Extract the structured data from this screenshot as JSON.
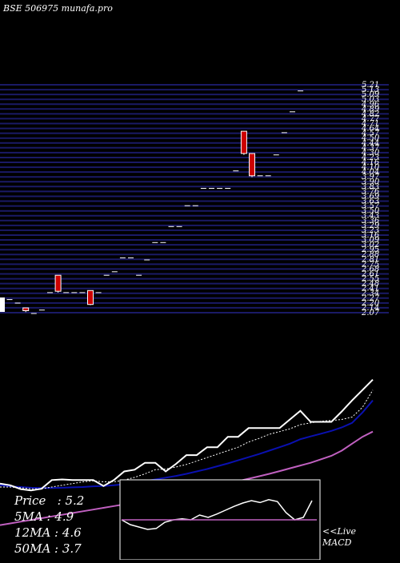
{
  "watermark": "BSE 506975 munafa.pro",
  "legend": {
    "price": "Price   : 5.2",
    "ma5": "5MA : 4.9",
    "ma12": "12MA : 4.6",
    "ma50": "50MA : 3.7"
  },
  "live_label": "<<Live",
  "macd_label": "MACD",
  "colors": {
    "background": "#000000",
    "grid": "#1a1a66",
    "candle": "#cc0000",
    "price_line": "#ffffff",
    "ma5": "#ffffff",
    "ma12": "#0a10b0",
    "ma50": "#c060c0",
    "macd_signal": "#c060c0"
  },
  "chart_data": [
    {
      "type": "candlestick",
      "title": "",
      "y_axis_side": "right",
      "ylim": [
        2.0,
        5.3
      ],
      "y_tick_labels": [
        "5.21",
        "5.13",
        "5.09",
        "5.03",
        "4.96",
        "4.89",
        "4.82",
        "4.77",
        "4.71",
        "4.64",
        "4.57",
        "4.50",
        "4.44",
        "4.37",
        "4.30",
        "4.23",
        "4.16",
        "4.10",
        "4.04",
        "3.97",
        "3.90",
        "3.83",
        "3.76",
        "3.69",
        "3.63",
        "3.57",
        "3.50",
        "3.43",
        "3.36",
        "3.29",
        "3.23",
        "3.16",
        "3.09",
        "3.02",
        "2.95",
        "2.88",
        "2.81",
        "2.75",
        "2.68",
        "2.61",
        "2.55",
        "2.48",
        "2.41",
        "2.34",
        "2.27",
        "2.20",
        "2.14",
        "2.07"
      ],
      "candles": [
        {
          "o": 2.2,
          "h": 2.2,
          "l": 2.2,
          "c": 2.2
        },
        {
          "o": 2.15,
          "h": 2.15,
          "l": 2.15,
          "c": 2.15
        },
        {
          "o": 2.08,
          "h": 2.08,
          "l": 2.02,
          "c": 2.04
        },
        {
          "o": 2.0,
          "h": 2.0,
          "l": 2.0,
          "c": 2.0
        },
        {
          "o": 2.05,
          "h": 2.05,
          "l": 2.05,
          "c": 2.05
        },
        {
          "o": 2.3,
          "h": 2.3,
          "l": 2.3,
          "c": 2.3
        },
        {
          "o": 2.55,
          "h": 2.55,
          "l": 2.3,
          "c": 2.32
        },
        {
          "o": 2.3,
          "h": 2.3,
          "l": 2.3,
          "c": 2.3
        },
        {
          "o": 2.3,
          "h": 2.3,
          "l": 2.3,
          "c": 2.3
        },
        {
          "o": 2.3,
          "h": 2.3,
          "l": 2.3,
          "c": 2.3
        },
        {
          "o": 2.33,
          "h": 2.33,
          "l": 2.12,
          "c": 2.13
        },
        {
          "o": 2.3,
          "h": 2.3,
          "l": 2.3,
          "c": 2.3
        },
        {
          "o": 2.55,
          "h": 2.55,
          "l": 2.55,
          "c": 2.55
        },
        {
          "o": 2.58,
          "h": 2.6,
          "l": 2.58,
          "c": 2.6
        },
        {
          "o": 2.8,
          "h": 2.8,
          "l": 2.8,
          "c": 2.8
        },
        {
          "o": 2.8,
          "h": 2.8,
          "l": 2.8,
          "c": 2.8
        },
        {
          "o": 2.55,
          "h": 2.55,
          "l": 2.55,
          "c": 2.55
        },
        {
          "o": 2.77,
          "h": 2.77,
          "l": 2.77,
          "c": 2.77
        },
        {
          "o": 3.02,
          "h": 3.02,
          "l": 3.02,
          "c": 3.02
        },
        {
          "o": 3.02,
          "h": 3.02,
          "l": 3.02,
          "c": 3.02
        },
        {
          "o": 3.25,
          "h": 3.25,
          "l": 3.25,
          "c": 3.25
        },
        {
          "o": 3.25,
          "h": 3.25,
          "l": 3.25,
          "c": 3.25
        },
        {
          "o": 3.55,
          "h": 3.55,
          "l": 3.55,
          "c": 3.55
        },
        {
          "o": 3.55,
          "h": 3.55,
          "l": 3.55,
          "c": 3.55
        },
        {
          "o": 3.8,
          "h": 3.8,
          "l": 3.8,
          "c": 3.8
        },
        {
          "o": 3.8,
          "h": 3.8,
          "l": 3.8,
          "c": 3.8
        },
        {
          "o": 3.8,
          "h": 3.8,
          "l": 3.8,
          "c": 3.8
        },
        {
          "o": 3.8,
          "h": 3.8,
          "l": 3.8,
          "c": 3.8
        },
        {
          "o": 4.05,
          "h": 4.05,
          "l": 4.05,
          "c": 4.05
        },
        {
          "o": 4.62,
          "h": 4.62,
          "l": 4.28,
          "c": 4.3
        },
        {
          "o": 4.3,
          "h": 4.3,
          "l": 3.96,
          "c": 3.98
        },
        {
          "o": 3.98,
          "h": 3.98,
          "l": 3.98,
          "c": 3.98
        },
        {
          "o": 3.98,
          "h": 3.98,
          "l": 3.98,
          "c": 3.98
        },
        {
          "o": 4.28,
          "h": 4.28,
          "l": 4.28,
          "c": 4.28
        },
        {
          "o": 4.6,
          "h": 4.6,
          "l": 4.6,
          "c": 4.6
        },
        {
          "o": 4.9,
          "h": 4.9,
          "l": 4.9,
          "c": 4.9
        },
        {
          "o": 5.2,
          "h": 5.2,
          "l": 5.2,
          "c": 5.2
        }
      ]
    },
    {
      "type": "line",
      "title": "",
      "ylim": [
        0,
        6
      ],
      "series": [
        {
          "name": "Price",
          "values": [
            2.2,
            2.15,
            2.04,
            2.0,
            2.05,
            2.3,
            2.32,
            2.3,
            2.3,
            2.3,
            2.13,
            2.3,
            2.55,
            2.6,
            2.8,
            2.8,
            2.55,
            2.77,
            3.02,
            3.02,
            3.25,
            3.25,
            3.55,
            3.55,
            3.8,
            3.8,
            3.8,
            3.8,
            4.05,
            4.3,
            3.98,
            3.98,
            3.98,
            4.28,
            4.6,
            4.9,
            5.2
          ]
        },
        {
          "name": "5MA",
          "values": [
            2.1,
            2.1,
            2.08,
            2.05,
            2.05,
            2.1,
            2.15,
            2.2,
            2.25,
            2.28,
            2.25,
            2.25,
            2.3,
            2.38,
            2.48,
            2.6,
            2.62,
            2.68,
            2.75,
            2.85,
            2.95,
            3.05,
            3.15,
            3.25,
            3.4,
            3.5,
            3.62,
            3.7,
            3.78,
            3.9,
            3.95,
            4.0,
            4.02,
            4.05,
            4.12,
            4.4,
            4.9
          ]
        },
        {
          "name": "12MA",
          "values": [
            2.15,
            2.12,
            2.1,
            2.08,
            2.07,
            2.07,
            2.08,
            2.09,
            2.1,
            2.12,
            2.13,
            2.15,
            2.18,
            2.22,
            2.27,
            2.32,
            2.37,
            2.42,
            2.48,
            2.55,
            2.62,
            2.7,
            2.78,
            2.87,
            2.96,
            3.05,
            3.15,
            3.25,
            3.35,
            3.48,
            3.56,
            3.64,
            3.72,
            3.82,
            3.95,
            4.25,
            4.6
          ]
        },
        {
          "name": "50MA",
          "values": [
            1.0,
            1.05,
            1.1,
            1.15,
            1.2,
            1.25,
            1.3,
            1.35,
            1.4,
            1.45,
            1.5,
            1.55,
            1.6,
            1.66,
            1.72,
            1.78,
            1.84,
            1.9,
            1.96,
            2.02,
            2.08,
            2.14,
            2.2,
            2.27,
            2.34,
            2.41,
            2.48,
            2.56,
            2.64,
            2.72,
            2.8,
            2.9,
            3.0,
            3.15,
            3.35,
            3.55,
            3.7
          ]
        }
      ]
    },
    {
      "type": "line",
      "title": "",
      "series": [
        {
          "name": "MACD",
          "values": [
            0.0,
            -0.1,
            -0.15,
            -0.2,
            -0.18,
            -0.05,
            0.0,
            0.02,
            0.0,
            0.1,
            0.05,
            0.12,
            0.2,
            0.28,
            0.35,
            0.4,
            0.36,
            0.42,
            0.38,
            0.15,
            0.0,
            0.05,
            0.4
          ]
        },
        {
          "name": "Signal",
          "values": [
            0,
            0,
            0,
            0,
            0,
            0,
            0,
            0,
            0,
            0,
            0,
            0,
            0,
            0,
            0,
            0,
            0,
            0,
            0,
            0,
            0,
            0,
            0
          ]
        }
      ]
    }
  ]
}
